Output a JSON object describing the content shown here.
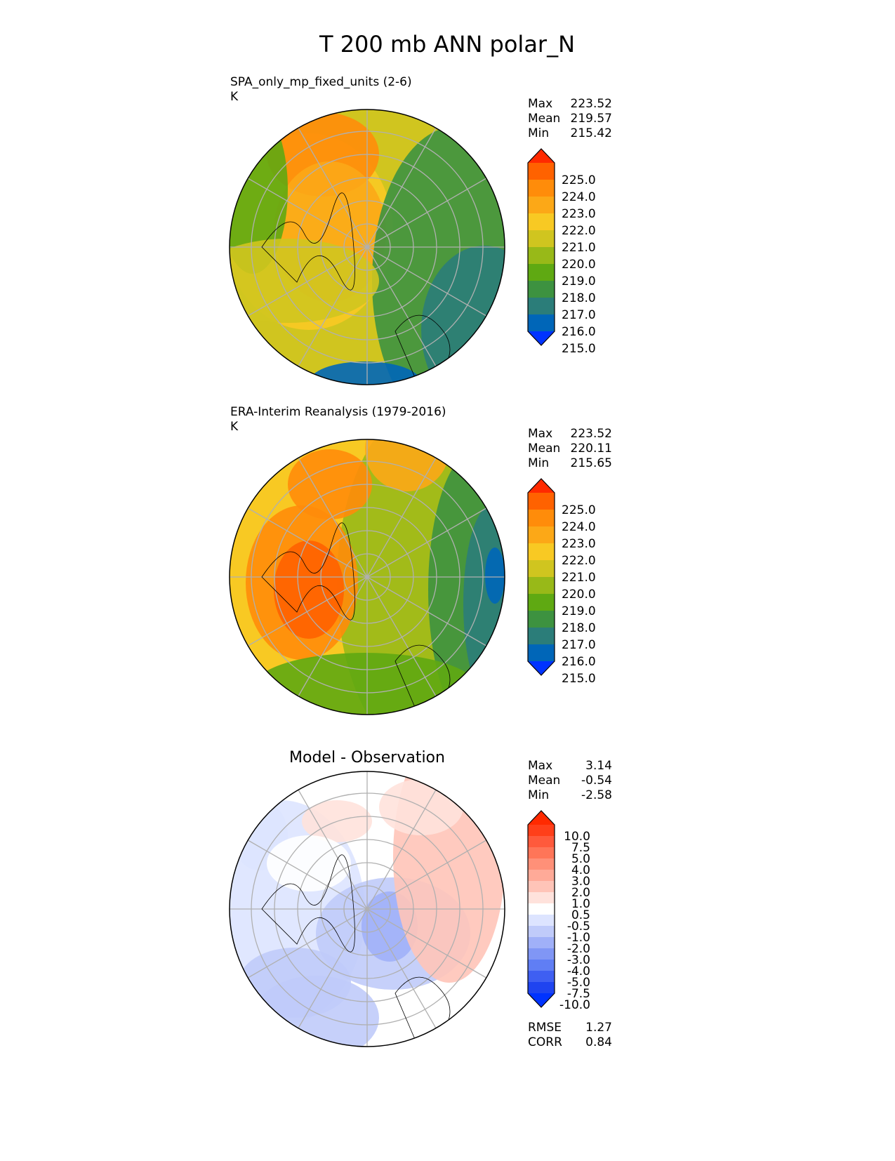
{
  "chart_data": {
    "type": "heatmap",
    "title": "T 200 mb ANN polar_N",
    "panels": [
      {
        "id": "test",
        "title_left": "SPA_only_mp_fixed_units (2-6)",
        "units": "K",
        "stats": [
          {
            "label": "Max",
            "value": "223.52"
          },
          {
            "label": "Mean",
            "value": "219.57"
          },
          {
            "label": "Min",
            "value": "215.42"
          }
        ],
        "colorbar": {
          "ticks": [
            "225.0",
            "224.0",
            "223.0",
            "222.0",
            "221.0",
            "220.0",
            "219.0",
            "218.0",
            "217.0",
            "216.0",
            "215.0"
          ],
          "colors": [
            "#ff2a00",
            "#ff6200",
            "#ff8c0a",
            "#fca817",
            "#f8c923",
            "#d0c51f",
            "#98b918",
            "#5fa912",
            "#3d9240",
            "#2b7d79",
            "#0066b8",
            "#0033ff"
          ]
        }
      },
      {
        "id": "reference",
        "title_left": "ERA-Interim Reanalysis (1979-2016)",
        "units": "K",
        "stats": [
          {
            "label": "Max",
            "value": "223.52"
          },
          {
            "label": "Mean",
            "value": "220.11"
          },
          {
            "label": "Min",
            "value": "215.65"
          }
        ],
        "colorbar": {
          "ticks": [
            "225.0",
            "224.0",
            "223.0",
            "222.0",
            "221.0",
            "220.0",
            "219.0",
            "218.0",
            "217.0",
            "216.0",
            "215.0"
          ],
          "colors": [
            "#ff2a00",
            "#ff6200",
            "#ff8c0a",
            "#fca817",
            "#f8c923",
            "#d0c51f",
            "#98b918",
            "#5fa912",
            "#3d9240",
            "#2b7d79",
            "#0066b8",
            "#0033ff"
          ]
        }
      },
      {
        "id": "diff",
        "title_center": "Model - Observation",
        "stats": [
          {
            "label": "Max",
            "value": "3.14"
          },
          {
            "label": "Mean",
            "value": "-0.54"
          },
          {
            "label": "Min",
            "value": "-2.58"
          }
        ],
        "extra_stats": [
          {
            "label": "RMSE",
            "value": "1.27"
          },
          {
            "label": "CORR",
            "value": "0.84"
          }
        ],
        "colorbar": {
          "ticks": [
            "10.0",
            "7.5",
            "5.0",
            "4.0",
            "3.0",
            "2.0",
            "1.0",
            "0.5",
            "-0.5",
            "-1.0",
            "-2.0",
            "-3.0",
            "-4.0",
            "-5.0",
            "-7.5",
            "-10.0"
          ],
          "colors": [
            "#ff2a00",
            "#ff3f1a",
            "#ff5a3c",
            "#ff7558",
            "#ff9078",
            "#ffaa98",
            "#ffc4b8",
            "#ffe2dc",
            "#ffffff",
            "#dde4ff",
            "#c0cbfa",
            "#a0b0f8",
            "#8096f5",
            "#607ef4",
            "#3f5ff2",
            "#1f44f0",
            "#0033ff"
          ]
        }
      }
    ]
  }
}
